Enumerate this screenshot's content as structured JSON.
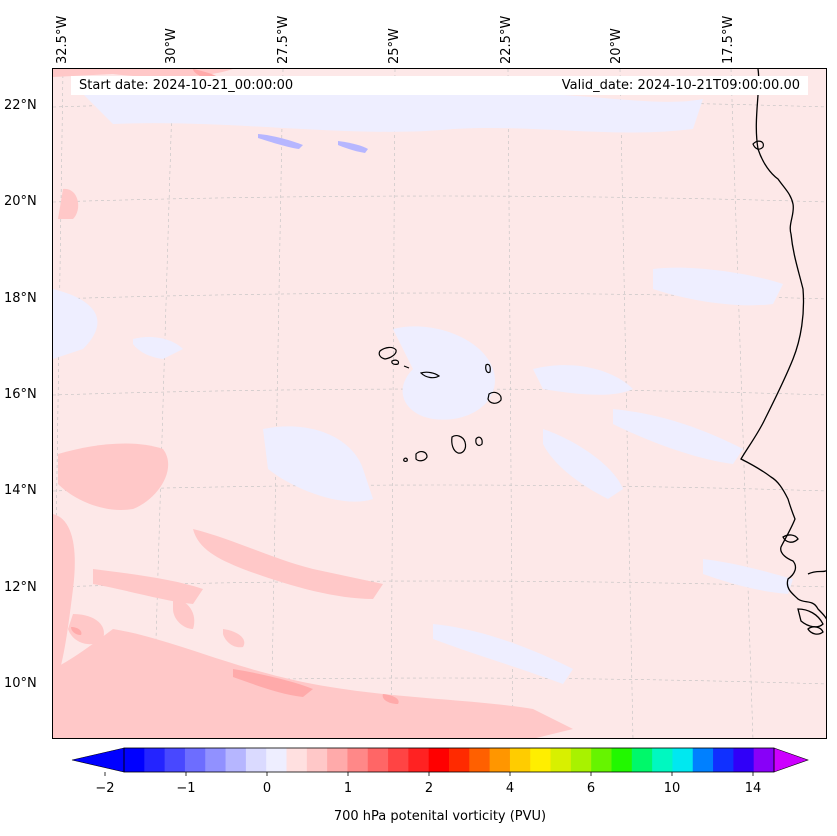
{
  "map": {
    "longitude_labels": [
      "32.5°W",
      "30°W",
      "27.5°W",
      "25°W",
      "22.5°W",
      "20°W",
      "17.5°W"
    ],
    "latitude_labels": [
      "22°N",
      "20°N",
      "18°N",
      "16°N",
      "14°N",
      "12°N",
      "10°N"
    ],
    "start_date": "Start date: 2024-10-21_00:00:00",
    "valid_date": "Valid_date: 2024-10-21T09:00:00.00",
    "background_color": "#fde8e8",
    "coastline_color": "#000000"
  },
  "colorbar": {
    "label": "700 hPa potenital vorticity (PVU)",
    "ticks": [
      "−2",
      "−1",
      "0",
      "1",
      "2",
      "4",
      "6",
      "10",
      "14"
    ],
    "colors": [
      "#0000ff",
      "#2424ff",
      "#4848ff",
      "#6d6dff",
      "#9191ff",
      "#b6b6ff",
      "#dadaff",
      "#eeeeff",
      "#ffe0e0",
      "#ffc8c8",
      "#ffaaaa",
      "#ff8888",
      "#ff6666",
      "#ff4444",
      "#ff2222",
      "#ff0000",
      "#ff2a00",
      "#ff6000",
      "#ff9600",
      "#ffcc00",
      "#ffee00",
      "#d8f000",
      "#a8f200",
      "#66f400",
      "#22f800",
      "#00f86a",
      "#00f8c0",
      "#00e8f0",
      "#0080ff",
      "#1030ff",
      "#3000f8",
      "#8800f8"
    ],
    "under_color": "#0000ff",
    "over_color": "#cc00ff"
  }
}
